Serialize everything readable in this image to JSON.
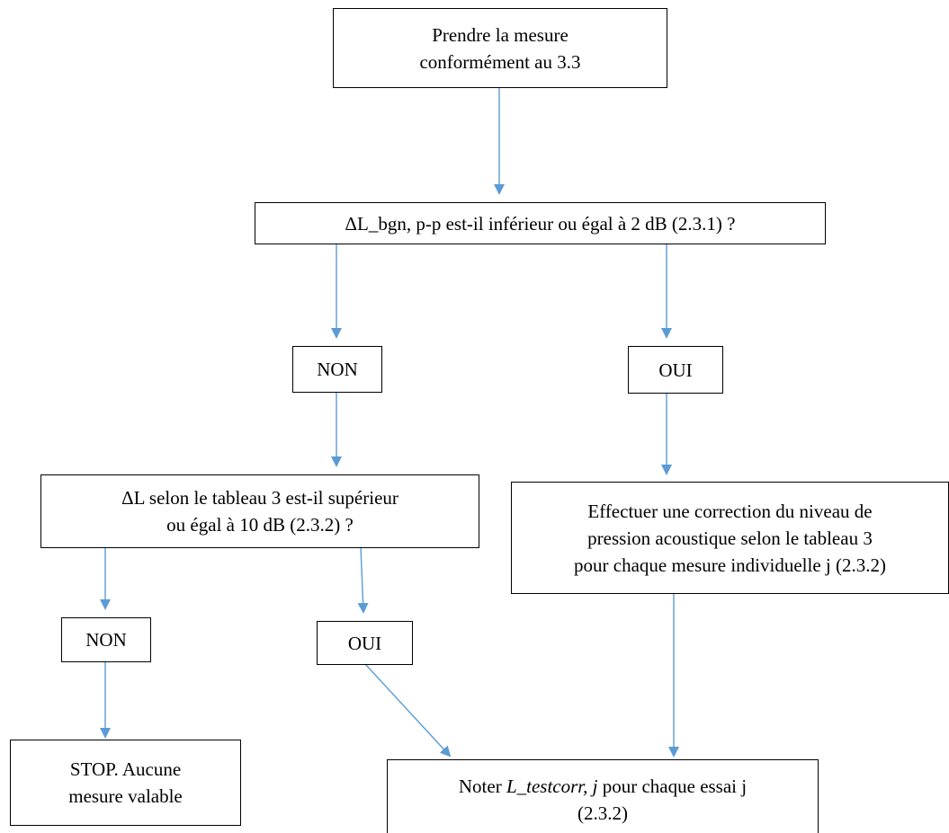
{
  "diagram": {
    "line_color": "#5b9bd5",
    "border_color": "#000000",
    "nodes": {
      "start": {
        "line1": "Prendre la mesure",
        "line2": "conformément au 3.3"
      },
      "question1": {
        "text": "ΔL_bgn, p-p est-il inférieur ou égal à 2 dB (2.3.1) ?"
      },
      "no1": {
        "text": "NON"
      },
      "yes1": {
        "text": "OUI"
      },
      "question2": {
        "line1": "ΔL selon le tableau 3 est-il supérieur",
        "line2": "ou égal à 10 dB (2.3.2) ?"
      },
      "correction": {
        "line1": "Effectuer une correction du niveau de",
        "line2": "pression acoustique selon le tableau 3",
        "line3": "pour chaque mesure individuelle j (2.3.2)"
      },
      "no2": {
        "text": "NON"
      },
      "yes2": {
        "text": "OUI"
      },
      "stop": {
        "line1": "STOP. Aucune",
        "line2": "mesure valable"
      },
      "note": {
        "prefix": "Noter ",
        "italic": "L_testcorr, j",
        "suffix": " pour chaque essai j",
        "line2": "(2.3.2)"
      }
    }
  }
}
